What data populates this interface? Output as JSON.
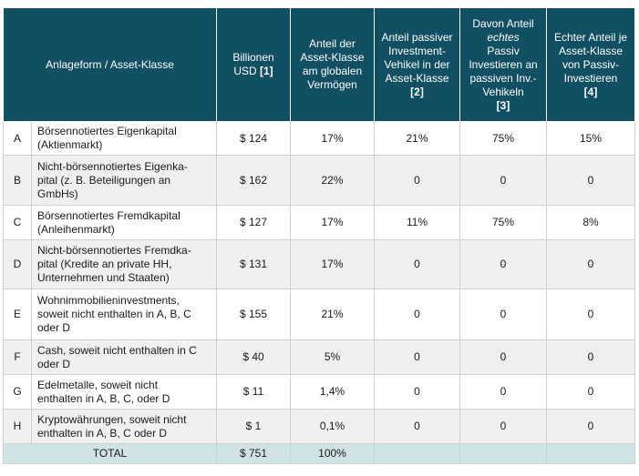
{
  "header": {
    "col_asset": "Anlageform / Asset-Klasse",
    "col_usd_text": "Billionen USD",
    "col_usd_ref": "[1]",
    "col_share": "Anteil der Asset-Klasse am globalen Vermögen",
    "col_passive_text": "Anteil passiver Investment-Vehikel in der Asset-Klasse",
    "col_passive_ref": "[2]",
    "col_true_before": "Davon Anteil",
    "col_true_em": "echtes",
    "col_true_after": "Passiv Investieren an passiven Inv.-Vehikeln",
    "col_true_ref": "[3]",
    "col_real_text": "Echter Anteil je Asset-Klasse von Passiv-Investieren",
    "col_real_ref": "[4]"
  },
  "rows": [
    {
      "letter": "A",
      "line1": "Börsennotiertes Eigenkapital",
      "line2": "(Aktienmarkt)",
      "line3": "",
      "usd": "$ 124",
      "share": "17%",
      "passive": "21%",
      "true_passive": "75%",
      "real": "15%"
    },
    {
      "letter": "B",
      "line1": "Nicht-börsennotiertes Eigenka-",
      "line2": "pital (z. B. Beteiligungen an",
      "line3": "GmbHs)",
      "usd": "$ 162",
      "share": "22%",
      "passive": "0",
      "true_passive": "0",
      "real": "0"
    },
    {
      "letter": "C",
      "line1": "Börsennotiertes Fremdkapital",
      "line2": "(Anleihenmarkt)",
      "line3": "",
      "usd": "$ 127",
      "share": "17%",
      "passive": "11%",
      "true_passive": "75%",
      "real": "8%"
    },
    {
      "letter": "D",
      "line1": "Nicht-börsennotiertes Fremdka-",
      "line2": "pital (Kredite an private HH,",
      "line3": "Unternehmen und Staaten)",
      "usd": "$ 131",
      "share": "17%",
      "passive": "0",
      "true_passive": "0",
      "real": "0"
    },
    {
      "letter": "E",
      "line1": "Wohnimmobilieninvestments,",
      "line2": "soweit nicht enthalten in A, B, C",
      "line3": "oder D",
      "usd": "$ 155",
      "share": "21%",
      "passive": "0",
      "true_passive": "0",
      "real": "0"
    },
    {
      "letter": "F",
      "line1": "Cash, soweit nicht enthalten in C",
      "line2": "oder D",
      "line3": "",
      "usd": "$ 40",
      "share": "5%",
      "passive": "0",
      "true_passive": "0",
      "real": "0"
    },
    {
      "letter": "G",
      "line1": "Edelmetalle, soweit nicht",
      "line2": "enthalten in A, B, C, oder D",
      "line3": "",
      "usd": "$ 11",
      "share": "1,4%",
      "passive": "0",
      "true_passive": "0",
      "real": "0"
    },
    {
      "letter": "H",
      "line1": "Kryptowährungen, soweit nicht",
      "line2": "enthalten in A, B, C oder D",
      "line3": "",
      "usd": "$ 1",
      "share": "0,1%",
      "passive": "0",
      "true_passive": "0",
      "real": "0"
    }
  ],
  "total": {
    "label": "TOTAL",
    "usd": "$ 751",
    "share": "100%"
  }
}
